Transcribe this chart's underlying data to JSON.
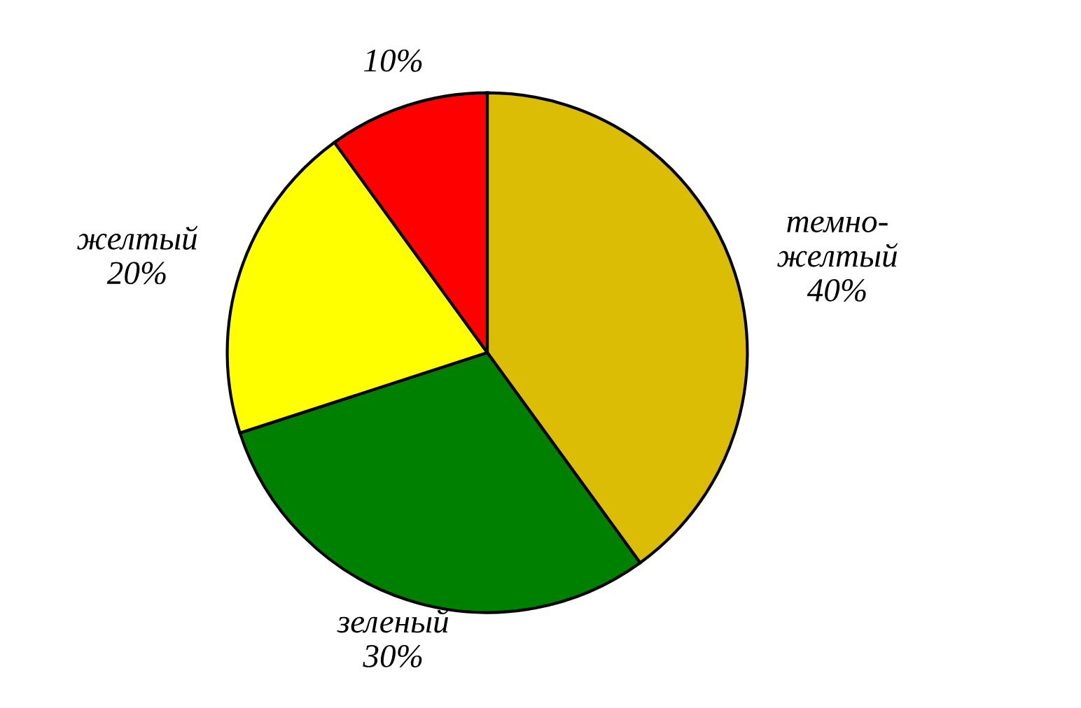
{
  "chart_data": {
    "type": "pie",
    "categories": [
      "темно-\nжелтый",
      "зеленый",
      "желтый",
      null
    ],
    "values": [
      40,
      30,
      20,
      10
    ],
    "colors": [
      "#dbbd06",
      "#008000",
      "#ffff00",
      "#ff0000"
    ],
    "value_labels": [
      "40%",
      "30%",
      "20%",
      "10%"
    ]
  }
}
